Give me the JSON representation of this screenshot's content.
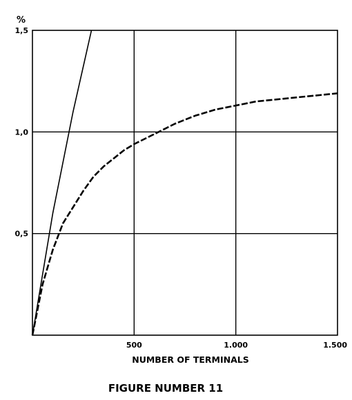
{
  "chart_data": {
    "type": "line",
    "title": "",
    "caption": "FIGURE NUMBER 11",
    "xlabel": "NUMBER OF TERMINALS",
    "ylabel": "%",
    "xlim": [
      0,
      1500
    ],
    "ylim": [
      0,
      1.5
    ],
    "x_ticks": [
      {
        "value": 500,
        "label": "500"
      },
      {
        "value": 1000,
        "label": "1.000"
      },
      {
        "value": 1500,
        "label": "1.500"
      }
    ],
    "y_ticks": [
      {
        "value": 0.5,
        "label": "0,5"
      },
      {
        "value": 1.0,
        "label": "1,0"
      },
      {
        "value": 1.5,
        "label": "1,5"
      }
    ],
    "grid": true,
    "series": [
      {
        "name": "",
        "style": "solid",
        "points": [
          [
            0,
            0
          ],
          [
            100,
            0.6
          ],
          [
            200,
            1.1
          ],
          [
            290,
            1.5
          ]
        ]
      },
      {
        "name": "",
        "style": "dashed",
        "points": [
          [
            0,
            0
          ],
          [
            50,
            0.25
          ],
          [
            100,
            0.42
          ],
          [
            150,
            0.55
          ],
          [
            200,
            0.63
          ],
          [
            250,
            0.71
          ],
          [
            300,
            0.78
          ],
          [
            350,
            0.83
          ],
          [
            400,
            0.87
          ],
          [
            450,
            0.91
          ],
          [
            500,
            0.94
          ],
          [
            600,
            0.99
          ],
          [
            700,
            1.04
          ],
          [
            800,
            1.08
          ],
          [
            900,
            1.11
          ],
          [
            1000,
            1.13
          ],
          [
            1100,
            1.15
          ],
          [
            1200,
            1.16
          ],
          [
            1300,
            1.17
          ],
          [
            1400,
            1.18
          ],
          [
            1500,
            1.19
          ]
        ]
      }
    ]
  }
}
